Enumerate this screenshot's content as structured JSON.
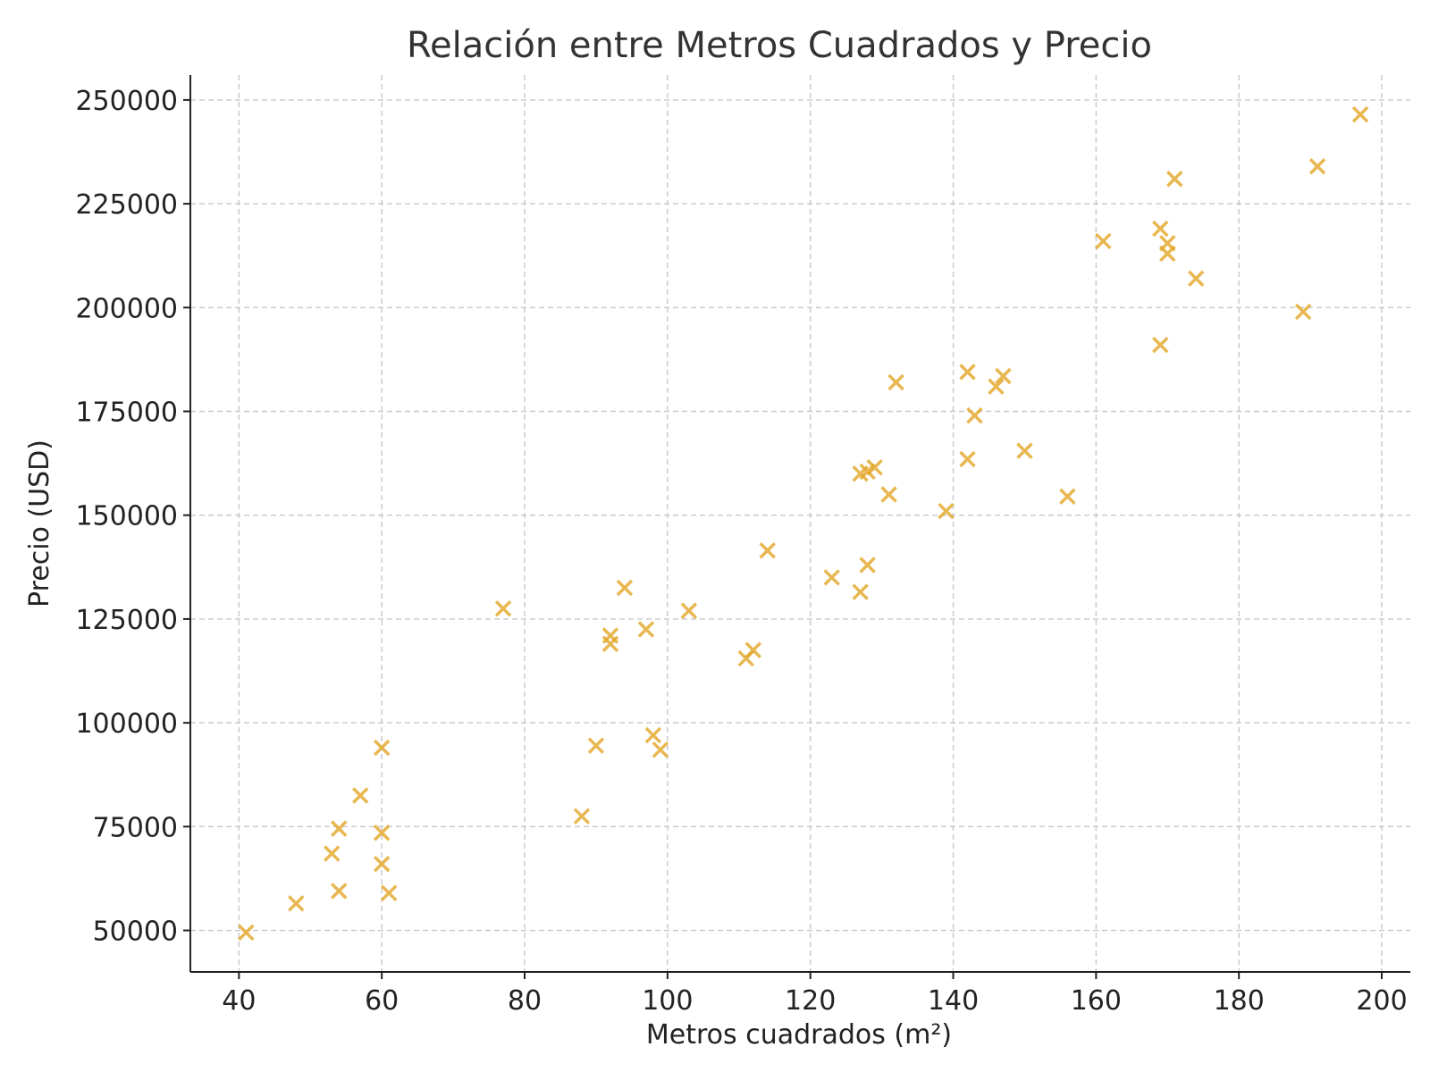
{
  "chart_data": {
    "type": "scatter",
    "title": "Relación entre Metros Cuadrados y Precio",
    "xlabel": "Metros cuadrados (m²)",
    "ylabel": "Precio (USD)",
    "xlim": [
      33.2,
      204
    ],
    "ylim": [
      40000,
      256000
    ],
    "x_ticks": [
      40,
      60,
      80,
      100,
      120,
      140,
      160,
      180,
      200
    ],
    "y_ticks": [
      50000,
      75000,
      100000,
      125000,
      150000,
      175000,
      200000,
      225000,
      250000
    ],
    "grid": true,
    "marker": "x",
    "color": "#E3A82B",
    "series": [
      {
        "points": [
          [
            41,
            49500
          ],
          [
            48,
            56500
          ],
          [
            53,
            68500
          ],
          [
            54,
            74500
          ],
          [
            54,
            59500
          ],
          [
            57,
            82500
          ],
          [
            60,
            94000
          ],
          [
            60,
            73500
          ],
          [
            60,
            66000
          ],
          [
            61,
            59000
          ],
          [
            77,
            127500
          ],
          [
            88,
            77500
          ],
          [
            90,
            94500
          ],
          [
            92,
            121000
          ],
          [
            92,
            119000
          ],
          [
            94,
            132500
          ],
          [
            97,
            122500
          ],
          [
            98,
            97000
          ],
          [
            99,
            93500
          ],
          [
            103,
            127000
          ],
          [
            111,
            115500
          ],
          [
            112,
            117500
          ],
          [
            114,
            141500
          ],
          [
            123,
            135000
          ],
          [
            127,
            131500
          ],
          [
            127,
            160000
          ],
          [
            128,
            160500
          ],
          [
            128,
            138000
          ],
          [
            129,
            161500
          ],
          [
            131,
            155000
          ],
          [
            132,
            182000
          ],
          [
            139,
            151000
          ],
          [
            142,
            184500
          ],
          [
            142,
            163500
          ],
          [
            143,
            174000
          ],
          [
            146,
            181000
          ],
          [
            147,
            183500
          ],
          [
            150,
            165500
          ],
          [
            156,
            154500
          ],
          [
            161,
            216000
          ],
          [
            169,
            219000
          ],
          [
            169,
            191000
          ],
          [
            170,
            215500
          ],
          [
            170,
            213000
          ],
          [
            171,
            231000
          ],
          [
            174,
            207000
          ],
          [
            189,
            199000
          ],
          [
            191,
            234000
          ],
          [
            197,
            246500
          ]
        ]
      }
    ]
  }
}
